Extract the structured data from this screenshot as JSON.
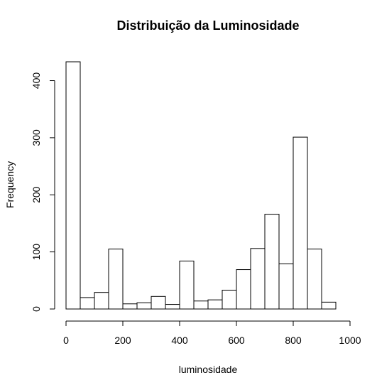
{
  "chart_data": {
    "type": "bar",
    "title": "Distribuição da Luminosidade",
    "xlabel": "luminosidade",
    "ylabel": "Frequency",
    "bin_width": 50,
    "bins": [
      {
        "start": 0,
        "end": 50,
        "count": 433
      },
      {
        "start": 50,
        "end": 100,
        "count": 20
      },
      {
        "start": 100,
        "end": 150,
        "count": 29
      },
      {
        "start": 150,
        "end": 200,
        "count": 105
      },
      {
        "start": 200,
        "end": 250,
        "count": 9
      },
      {
        "start": 250,
        "end": 300,
        "count": 11
      },
      {
        "start": 300,
        "end": 350,
        "count": 22
      },
      {
        "start": 350,
        "end": 400,
        "count": 8
      },
      {
        "start": 400,
        "end": 450,
        "count": 84
      },
      {
        "start": 450,
        "end": 500,
        "count": 14
      },
      {
        "start": 500,
        "end": 550,
        "count": 16
      },
      {
        "start": 550,
        "end": 600,
        "count": 33
      },
      {
        "start": 600,
        "end": 650,
        "count": 69
      },
      {
        "start": 650,
        "end": 700,
        "count": 106
      },
      {
        "start": 700,
        "end": 750,
        "count": 166
      },
      {
        "start": 750,
        "end": 800,
        "count": 79
      },
      {
        "start": 800,
        "end": 850,
        "count": 301
      },
      {
        "start": 850,
        "end": 900,
        "count": 105
      },
      {
        "start": 900,
        "end": 950,
        "count": 12
      }
    ],
    "xlim": [
      0,
      1000
    ],
    "ylim": [
      0,
      433
    ],
    "x_ticks": [
      0,
      200,
      400,
      600,
      800,
      1000
    ],
    "y_ticks": [
      0,
      100,
      200,
      300,
      400
    ],
    "grid": false,
    "legend": "none"
  }
}
